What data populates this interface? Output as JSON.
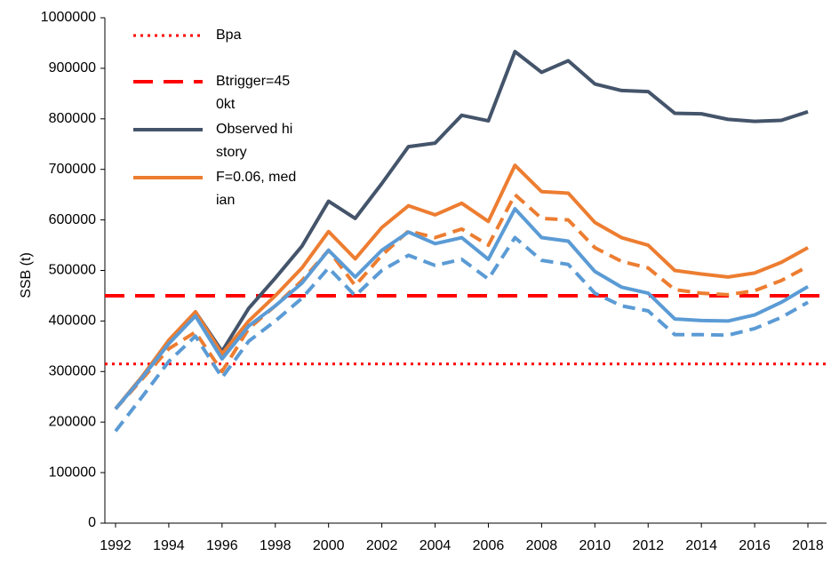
{
  "chart_data": {
    "type": "line",
    "y_label": "SSB (t)",
    "x": [
      1992,
      1993,
      1994,
      1995,
      1996,
      1997,
      1998,
      1999,
      2000,
      2001,
      2002,
      2003,
      2004,
      2005,
      2006,
      2007,
      2008,
      2009,
      2010,
      2011,
      2012,
      2013,
      2014,
      2015,
      2016,
      2017,
      2018
    ],
    "xlim": [
      1991.6,
      2018.7
    ],
    "xticks": [
      1992,
      1994,
      1996,
      1998,
      2000,
      2002,
      2004,
      2006,
      2008,
      2010,
      2012,
      2014,
      2016,
      2018
    ],
    "ylim": [
      0,
      1000000
    ],
    "yticks": [
      0,
      100000,
      200000,
      300000,
      400000,
      500000,
      600000,
      700000,
      800000,
      900000,
      1000000
    ],
    "reference_lines": [
      {
        "name": "Bpa",
        "value": 315000,
        "color": "#ff0000",
        "style": "dotted"
      },
      {
        "name": "Btrigger=450kt",
        "value": 450000,
        "color": "#ff0000",
        "style": "dashed"
      }
    ],
    "series": [
      {
        "name": "Observed history",
        "color": "#44546a",
        "style": "solid",
        "values": [
          226000,
          290000,
          360000,
          418000,
          340000,
          425000,
          485000,
          548000,
          637000,
          603000,
          672000,
          745000,
          752000,
          807000,
          796000,
          933000,
          892000,
          915000,
          869000,
          856000,
          854000,
          811000,
          810000,
          799000,
          795000,
          797000,
          814000
        ]
      },
      {
        "name": "F=0.06, median",
        "color": "#ed7d31",
        "style": "solid",
        "values": [
          226000,
          290000,
          362000,
          418000,
          335000,
          400000,
          450000,
          505000,
          577000,
          523000,
          585000,
          628000,
          610000,
          633000,
          597000,
          708000,
          656000,
          653000,
          595000,
          565000,
          550000,
          500000,
          493000,
          487000,
          495000,
          516000,
          545000
        ]
      },
      {
        "color": "#ed7d31",
        "style": "dashed",
        "values": [
          226000,
          285000,
          345000,
          378000,
          300000,
          385000,
          430000,
          480000,
          540000,
          470000,
          530000,
          578000,
          565000,
          582000,
          550000,
          650000,
          603000,
          600000,
          545000,
          518000,
          505000,
          462000,
          455000,
          452000,
          460000,
          480000,
          508000
        ]
      },
      {
        "color": "#5b9bd5",
        "style": "solid",
        "values": [
          226000,
          288000,
          355000,
          410000,
          325000,
          390000,
          430000,
          475000,
          540000,
          487000,
          540000,
          576000,
          553000,
          565000,
          522000,
          622000,
          565000,
          558000,
          498000,
          467000,
          455000,
          404000,
          401000,
          400000,
          412000,
          437000,
          468000
        ]
      },
      {
        "color": "#5b9bd5",
        "style": "dashed",
        "values": [
          182000,
          250000,
          320000,
          370000,
          288000,
          360000,
          400000,
          445000,
          505000,
          450000,
          500000,
          530000,
          510000,
          522000,
          483000,
          565000,
          520000,
          512000,
          455000,
          430000,
          420000,
          373000,
          373000,
          372000,
          385000,
          407000,
          437000
        ]
      }
    ]
  }
}
